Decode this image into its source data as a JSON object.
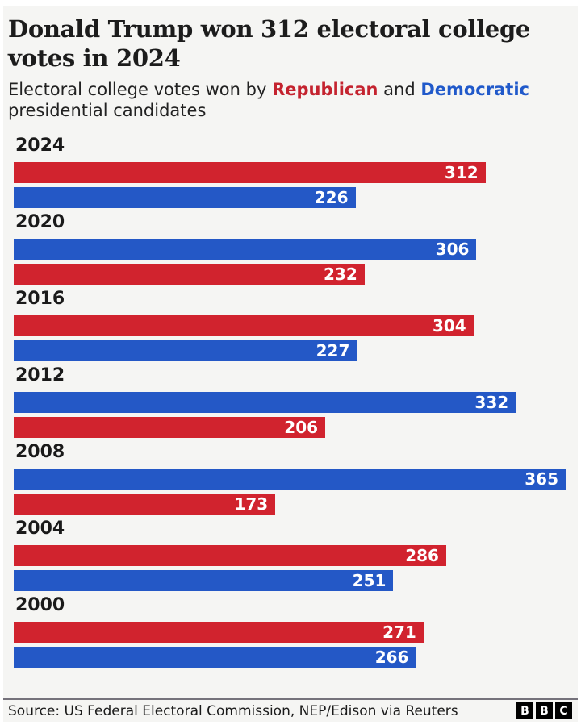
{
  "header": {
    "title": "Donald Trump won 312 electoral college votes in 2024",
    "subtitle_prefix": "Electoral college votes won by ",
    "republican_word": "Republican",
    "and_word": " and ",
    "democratic_word": "Democratic",
    "subtitle_suffix": " presidential candidates"
  },
  "colors": {
    "republican": "#d1232e",
    "democratic": "#2458c6",
    "republican_text": "#c4232f",
    "democratic_text": "#2059ca",
    "background": "#f5f5f3",
    "bar_value_text": "#ffffff"
  },
  "chart_data": {
    "type": "bar",
    "orientation": "horizontal",
    "title": "Donald Trump won 312 electoral college votes in 2024",
    "categories": [
      "2024",
      "2020",
      "2016",
      "2012",
      "2008",
      "2004",
      "2000"
    ],
    "series": [
      {
        "name": "Republican",
        "color": "#d1232e",
        "values": [
          312,
          232,
          304,
          206,
          173,
          286,
          271
        ]
      },
      {
        "name": "Democratic",
        "color": "#2458c6",
        "values": [
          226,
          306,
          227,
          332,
          365,
          251,
          266
        ]
      }
    ],
    "bar_order": [
      [
        "Republican",
        "Democratic"
      ],
      [
        "Democratic",
        "Republican"
      ],
      [
        "Republican",
        "Democratic"
      ],
      [
        "Democratic",
        "Republican"
      ],
      [
        "Democratic",
        "Republican"
      ],
      [
        "Republican",
        "Democratic"
      ],
      [
        "Republican",
        "Democratic"
      ]
    ],
    "value_axis_max": 365,
    "value_labels_position": "inside-end",
    "grid": false,
    "legend": "inline-in-subtitle"
  },
  "footer": {
    "source": "Source: US Federal Electoral Commission, NEP/Edison via Reuters",
    "logo_letters": [
      "B",
      "B",
      "C"
    ]
  }
}
